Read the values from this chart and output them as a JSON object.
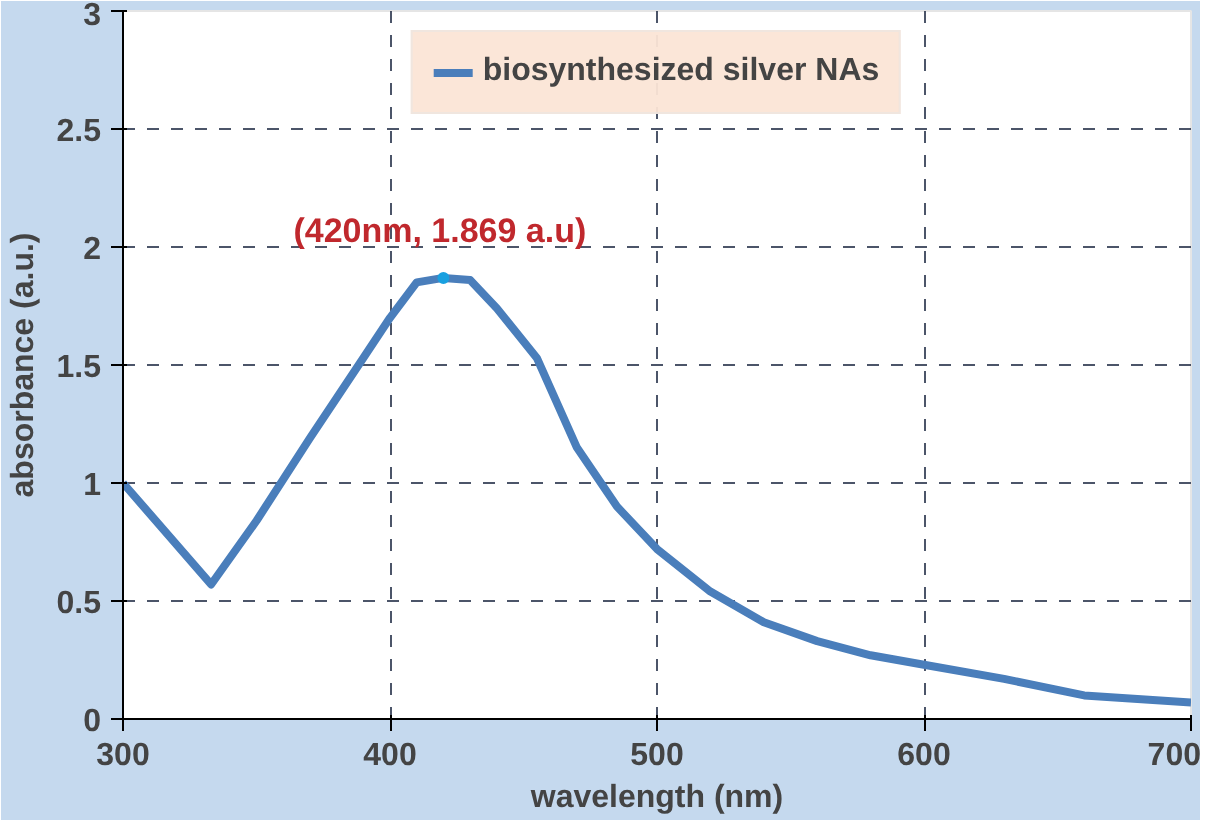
{
  "chart_data": {
    "type": "line",
    "xlabel": "wavelength (nm)",
    "ylabel": "absorbance (a.u.)",
    "x": [
      300,
      333,
      350,
      370,
      390,
      400,
      410,
      420,
      430,
      440,
      455,
      470,
      485,
      500,
      520,
      540,
      560,
      580,
      600,
      630,
      660,
      700
    ],
    "series": [
      {
        "name": "biosynthesized silver NAs",
        "color": "#4a7ebb",
        "values": [
          1.0,
          0.57,
          0.84,
          1.19,
          1.53,
          1.7,
          1.85,
          1.869,
          1.86,
          1.74,
          1.53,
          1.15,
          0.9,
          0.72,
          0.54,
          0.41,
          0.33,
          0.27,
          0.23,
          0.17,
          0.1,
          0.07
        ]
      }
    ],
    "xlim": [
      300,
      700
    ],
    "xticks": [
      300,
      400,
      500,
      600,
      700
    ],
    "ylim": [
      0,
      3
    ],
    "yticks": [
      0,
      0.5,
      1,
      1.5,
      2,
      2.5,
      3
    ],
    "annotations": [
      {
        "text": "(420nm, 1.869 a.u)",
        "x": 420,
        "y": 1.869
      }
    ],
    "grid": true,
    "legend": "top",
    "marker": "none",
    "line_style": "solid"
  }
}
